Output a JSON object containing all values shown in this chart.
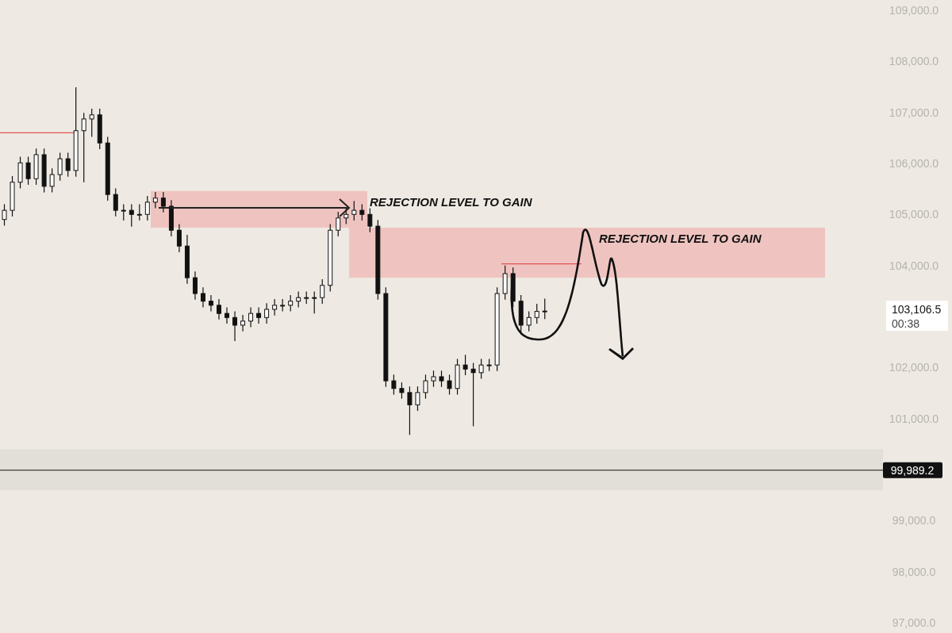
{
  "chart_data": {
    "type": "candlestick",
    "categories": [
      null,
      null,
      null,
      null,
      null,
      null,
      null,
      null,
      null,
      null,
      null,
      null,
      null,
      null,
      null,
      null,
      null,
      null,
      null,
      null,
      null,
      null,
      null,
      null,
      null,
      null,
      null,
      null,
      null,
      null,
      null,
      null,
      null,
      null,
      null,
      null,
      null,
      null,
      null,
      null,
      null,
      null,
      null,
      null,
      null,
      null,
      null,
      null,
      null,
      null,
      null,
      null,
      null,
      null,
      null,
      null,
      null,
      null,
      null,
      null,
      null,
      null,
      null,
      null,
      null,
      null,
      null,
      null,
      null,
      null,
      null,
      null,
      null,
      null,
      null,
      null,
      null,
      null,
      null,
      null,
      null,
      null,
      null,
      null,
      null,
      null,
      null,
      null,
      null,
      null,
      null,
      null,
      null,
      null,
      null,
      null,
      null,
      null,
      null,
      null,
      null,
      null,
      null,
      null,
      null,
      null,
      null,
      null,
      null,
      null,
      null
    ],
    "ohlc": [
      [
        104900,
        105200,
        104780,
        105080
      ],
      [
        105080,
        105750,
        104960,
        105630
      ],
      [
        105630,
        106130,
        105510,
        106010
      ],
      [
        106010,
        106130,
        105580,
        105700
      ],
      [
        105700,
        106290,
        105580,
        106170
      ],
      [
        106170,
        106290,
        105430,
        105550
      ],
      [
        105550,
        105900,
        105430,
        105780
      ],
      [
        105780,
        106210,
        105660,
        106090
      ],
      [
        106090,
        106210,
        105740,
        105860
      ],
      [
        105860,
        107490,
        105740,
        106640
      ],
      [
        106640,
        106990,
        105630,
        106870
      ],
      [
        106870,
        107070,
        106520,
        106950
      ],
      [
        106950,
        107070,
        106280,
        106400
      ],
      [
        106400,
        106520,
        105270,
        105390
      ],
      [
        105390,
        105510,
        104960,
        105080
      ],
      [
        105080,
        105200,
        104880,
        105080
      ],
      [
        105080,
        105200,
        104760,
        105000
      ],
      [
        105000,
        105200,
        104880,
        105000
      ],
      [
        105000,
        105360,
        104880,
        105240
      ],
      [
        105240,
        105440,
        105120,
        105320
      ],
      [
        105320,
        105440,
        105040,
        105160
      ],
      [
        105160,
        105280,
        104570,
        104690
      ],
      [
        104690,
        104810,
        104260,
        104380
      ],
      [
        104380,
        104600,
        103640,
        103760
      ],
      [
        103760,
        103880,
        103330,
        103450
      ],
      [
        103450,
        103570,
        103180,
        103300
      ],
      [
        103300,
        103420,
        103100,
        103220
      ],
      [
        103220,
        103340,
        102940,
        103060
      ],
      [
        103060,
        103180,
        102860,
        102980
      ],
      [
        102980,
        103100,
        102520,
        102830
      ],
      [
        102830,
        103030,
        102710,
        102910
      ],
      [
        102910,
        103180,
        102790,
        103060
      ],
      [
        103060,
        103180,
        102860,
        102980
      ],
      [
        102980,
        103260,
        102860,
        103140
      ],
      [
        103140,
        103340,
        103020,
        103220
      ],
      [
        103220,
        103340,
        103100,
        103220
      ],
      [
        103220,
        103420,
        103100,
        103300
      ],
      [
        103300,
        103490,
        103180,
        103370
      ],
      [
        103370,
        103490,
        103250,
        103370
      ],
      [
        103370,
        103490,
        103060,
        103370
      ],
      [
        103370,
        103730,
        103250,
        103610
      ],
      [
        103610,
        104810,
        103490,
        104690
      ],
      [
        104690,
        105050,
        104570,
        104930
      ],
      [
        104930,
        105120,
        104810,
        105000
      ],
      [
        105000,
        105260,
        104880,
        105080
      ],
      [
        105080,
        105200,
        104880,
        105000
      ],
      [
        105000,
        105120,
        104650,
        104770
      ],
      [
        104770,
        104890,
        103330,
        103450
      ],
      [
        103450,
        103570,
        101620,
        101740
      ],
      [
        101740,
        101860,
        101470,
        101590
      ],
      [
        101590,
        101710,
        101390,
        101510
      ],
      [
        101510,
        101630,
        100680,
        101270
      ],
      [
        101270,
        101630,
        101150,
        101510
      ],
      [
        101510,
        101860,
        101390,
        101740
      ],
      [
        101740,
        101940,
        101620,
        101820
      ],
      [
        101820,
        101940,
        101620,
        101740
      ],
      [
        101740,
        101860,
        101470,
        101590
      ],
      [
        101590,
        102170,
        101470,
        102050
      ],
      [
        102050,
        102250,
        101850,
        101970
      ],
      [
        101970,
        102090,
        100850,
        101900
      ],
      [
        101900,
        102170,
        101780,
        102050
      ],
      [
        102050,
        102170,
        101930,
        102050
      ],
      [
        102050,
        103570,
        101930,
        103450
      ],
      [
        103450,
        104000,
        103330,
        103840
      ],
      [
        103840,
        103960,
        103180,
        103300
      ],
      [
        103300,
        103420,
        102650,
        102830
      ],
      [
        102830,
        103100,
        102710,
        102980
      ],
      [
        102980,
        103250,
        102860,
        103100
      ],
      [
        103100,
        103350,
        102950,
        103106.5
      ],
      null,
      null,
      null,
      null,
      null,
      null,
      null,
      null,
      null,
      null,
      null,
      null,
      null,
      null,
      null,
      null,
      null,
      null,
      null,
      null,
      null,
      null,
      null,
      null,
      null,
      null,
      null,
      null,
      null,
      null,
      null,
      null,
      null,
      null,
      null,
      null,
      null,
      null,
      null,
      null,
      null,
      null
    ],
    "color": "#111111",
    "ylim": [
      96800,
      109200
    ],
    "yticks": [
      {
        "value": 97000,
        "label": "97,000.0"
      },
      {
        "value": 98000,
        "label": "98,000.0"
      },
      {
        "value": 99000,
        "label": "99,000.0"
      },
      {
        "value": 101000,
        "label": "101,000.0"
      },
      {
        "value": 102000,
        "label": "102,000.0"
      },
      {
        "value": 104000,
        "label": "104,000.0"
      },
      {
        "value": 105000,
        "label": "105,000.0"
      },
      {
        "value": 106000,
        "label": "106,000.0"
      },
      {
        "value": 107000,
        "label": "107,000.0"
      },
      {
        "value": 108000,
        "label": "108,000.0"
      },
      {
        "value": 109000,
        "label": "109,000.0"
      }
    ],
    "tick_labels": "y",
    "grid": false,
    "bands": [
      {
        "axis": "y",
        "from": 104740,
        "to": 105460,
        "color": "#efc4c0"
      },
      {
        "axis": "y",
        "from": 103760,
        "to": 104740,
        "color": "#efc4c0"
      },
      {
        "axis": "y",
        "from": 99600,
        "to": 100400,
        "color": "#e2dfd8"
      }
    ],
    "ref_lines": [
      {
        "axis": "y",
        "value": 106600,
        "color": "#e05555"
      },
      {
        "axis": "y",
        "value": 104030,
        "color": "#e05555"
      },
      {
        "axis": "y",
        "value": 99989.2,
        "label": "99,989.2",
        "color": "#111111"
      }
    ],
    "annotations": [
      "REJECTION LEVEL TO GAIN",
      "REJECTION LEVEL TO GAIN",
      "103,106.5",
      "00:38"
    ]
  }
}
